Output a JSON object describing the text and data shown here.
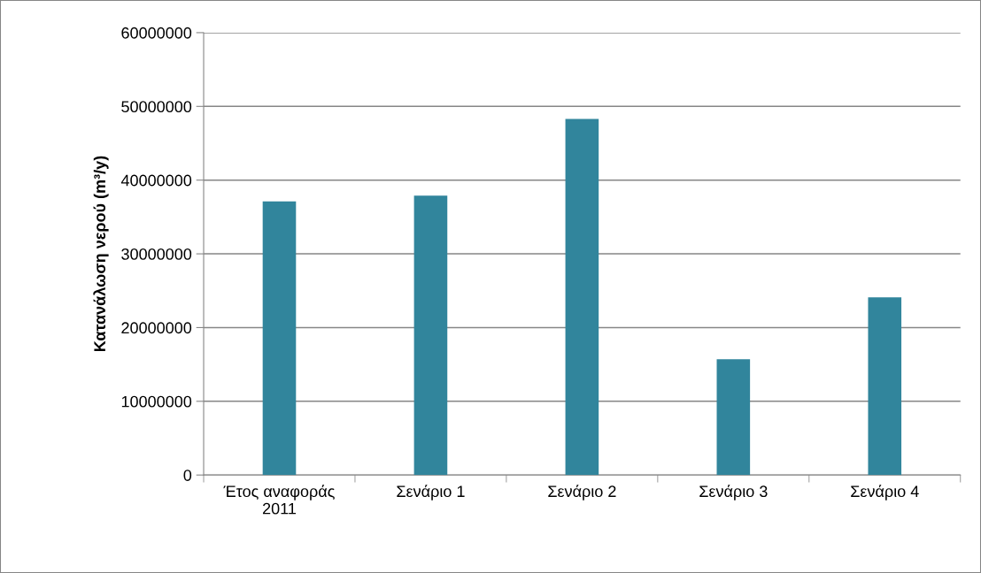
{
  "chart_data": {
    "type": "bar",
    "ylabel": "Κατανάλωση νερού (m³/y)",
    "categories": [
      "Έτος αναφοράς\n2011",
      "Σενάριο 1",
      "Σενάριο 2",
      "Σενάριο 3",
      "Σενάριο 4"
    ],
    "values": [
      37100000,
      37900000,
      48300000,
      15700000,
      24100000
    ],
    "color": "#31859c",
    "ylim": [
      0,
      60000000
    ],
    "yticks": [
      0,
      10000000,
      20000000,
      30000000,
      40000000,
      50000000,
      60000000
    ],
    "grid": "y",
    "legend": false
  }
}
